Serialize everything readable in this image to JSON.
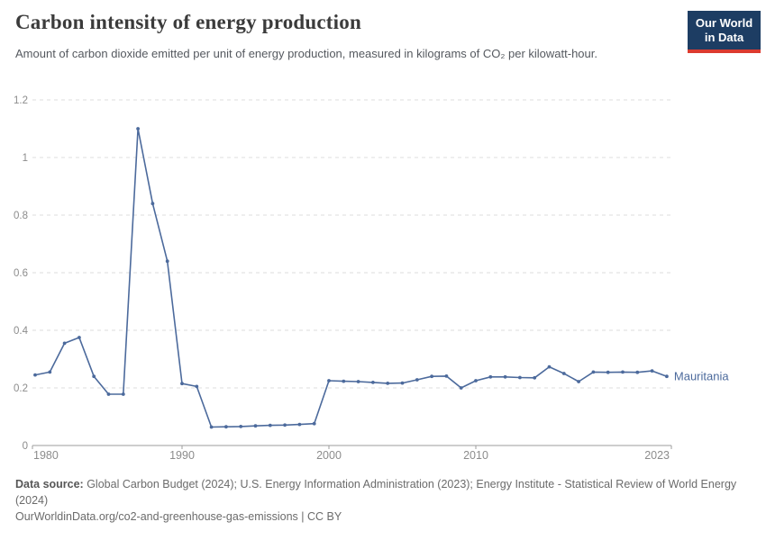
{
  "header": {
    "title": "Carbon intensity of energy production",
    "subtitle": "Amount of carbon dioxide emitted per unit of energy production, measured in kilograms of CO₂ per kilowatt-hour."
  },
  "logo": {
    "line1": "Our World",
    "line2": "in Data",
    "bg_color": "#1d3d63",
    "stripe_color": "#dc3b2f"
  },
  "chart_data": {
    "type": "line",
    "title": "Carbon intensity of energy production",
    "x": [
      1980,
      1981,
      1982,
      1983,
      1984,
      1985,
      1986,
      1987,
      1988,
      1989,
      1990,
      1991,
      1992,
      1993,
      1994,
      1995,
      1996,
      1997,
      1998,
      1999,
      2000,
      2001,
      2002,
      2003,
      2004,
      2005,
      2006,
      2007,
      2008,
      2009,
      2010,
      2011,
      2012,
      2013,
      2014,
      2015,
      2016,
      2017,
      2018,
      2019,
      2020,
      2021,
      2022,
      2023
    ],
    "series": [
      {
        "name": "Mauritania",
        "color": "#4C6A9C",
        "values": [
          0.245,
          0.255,
          0.355,
          0.375,
          0.24,
          0.178,
          0.178,
          1.1,
          0.84,
          0.64,
          0.215,
          0.205,
          0.064,
          0.065,
          0.066,
          0.068,
          0.07,
          0.071,
          0.073,
          0.076,
          0.225,
          0.223,
          0.222,
          0.219,
          0.216,
          0.217,
          0.228,
          0.24,
          0.241,
          0.2,
          0.225,
          0.238,
          0.238,
          0.236,
          0.235,
          0.273,
          0.25,
          0.222,
          0.255,
          0.254,
          0.255,
          0.254,
          0.259,
          0.24
        ]
      }
    ],
    "xlabel": "",
    "ylabel": "",
    "ylim": [
      0,
      1.2
    ],
    "yticks": [
      0,
      0.2,
      0.4,
      0.6,
      0.8,
      1,
      1.2
    ],
    "ytick_labels": [
      "0",
      "0.2",
      "0.4",
      "0.6",
      "0.8",
      "1",
      "1.2"
    ],
    "xticks": [
      1980,
      1990,
      2000,
      2010,
      2023
    ],
    "xtick_labels": [
      "1980",
      "1990",
      "2000",
      "2010",
      "2023"
    ],
    "grid": "dashed-horizontal",
    "legend_position": "end-of-line-label",
    "entity_label": "Mauritania",
    "colors": {
      "line": "#4C6A9C",
      "gridline": "#dedede",
      "axis": "#9e9e9e",
      "tick_text": "#8c8c8c"
    }
  },
  "footer": {
    "source_label": "Data source:",
    "source_text": " Global Carbon Budget (2024); U.S. Energy Information Administration (2023); Energy Institute - Statistical Review of World Energy (2024)",
    "url_text": "OurWorldinData.org/co2-and-greenhouse-gas-emissions",
    "separator": " | ",
    "license_text": "CC BY"
  }
}
